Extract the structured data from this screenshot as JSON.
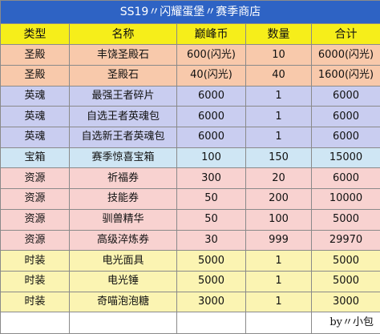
{
  "sheet": {
    "title": "SS19〃闪耀蛋堡〃赛季商店",
    "headers": [
      "类型",
      "名称",
      "巅峰币",
      "数量",
      "合计"
    ],
    "rows": [
      {
        "type": "圣殿",
        "name": "丰饶圣殿石",
        "price": "600(闪光)",
        "qty": "10",
        "total": "6000(闪光)",
        "category": "shengdian"
      },
      {
        "type": "圣殿",
        "name": "圣殿石",
        "price": "40(闪光)",
        "qty": "40",
        "total": "1600(闪光)",
        "category": "shengdian"
      },
      {
        "type": "英魂",
        "name": "最强王者碎片",
        "price": "6000",
        "qty": "1",
        "total": "6000",
        "category": "yinghun"
      },
      {
        "type": "英魂",
        "name": "自选王者英魂包",
        "price": "6000",
        "qty": "1",
        "total": "6000",
        "category": "yinghun"
      },
      {
        "type": "英魂",
        "name": "自选新王者英魂包",
        "price": "6000",
        "qty": "1",
        "total": "6000",
        "category": "yinghun"
      },
      {
        "type": "宝箱",
        "name": "赛季惊喜宝箱",
        "price": "100",
        "qty": "150",
        "total": "15000",
        "category": "baoxiang"
      },
      {
        "type": "资源",
        "name": "祈福券",
        "price": "300",
        "qty": "20",
        "total": "6000",
        "category": "ziyuan"
      },
      {
        "type": "资源",
        "name": "技能券",
        "price": "50",
        "qty": "200",
        "total": "10000",
        "category": "ziyuan"
      },
      {
        "type": "资源",
        "name": "驯兽精华",
        "price": "50",
        "qty": "100",
        "total": "5000",
        "category": "ziyuan"
      },
      {
        "type": "资源",
        "name": "高级淬炼券",
        "price": "30",
        "qty": "999",
        "total": "29970",
        "category": "ziyuan"
      },
      {
        "type": "时装",
        "name": "电光面具",
        "price": "5000",
        "qty": "1",
        "total": "5000",
        "category": "shizhuang"
      },
      {
        "type": "时装",
        "name": "电光锤",
        "price": "5000",
        "qty": "1",
        "total": "5000",
        "category": "shizhuang"
      },
      {
        "type": "时装",
        "name": "奇喵泡泡糖",
        "price": "3000",
        "qty": "1",
        "total": "3000",
        "category": "shizhuang"
      }
    ],
    "footer": "by〃小包"
  },
  "colors": {
    "title_bg": "#2e63c4",
    "header_bg": "#f6ee1a",
    "shengdian": "#f8c9ab",
    "yinghun": "#c9cdf0",
    "baoxiang": "#cfe6f4",
    "ziyuan": "#f8d2d0",
    "shizhuang": "#fbf4b2"
  }
}
